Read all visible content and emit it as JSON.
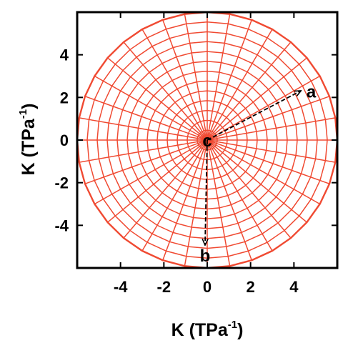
{
  "chart_data": {
    "type": "polar-mesh",
    "xlabel_main": "K (TPa",
    "xlabel_sup": "-1",
    "xlabel_close": ")",
    "ylabel_main": "K (TPa",
    "ylabel_sup": "-1",
    "ylabel_close": ")",
    "xlim": [
      -6,
      6
    ],
    "ylim": [
      -6,
      6
    ],
    "xticks": [
      -4,
      -2,
      0,
      2,
      4
    ],
    "yticks": [
      -4,
      -2,
      0,
      2,
      4
    ],
    "xtick_labels": [
      "-4",
      "-2",
      "0",
      "2",
      "4"
    ],
    "ytick_labels": [
      "-4",
      "-2",
      "0",
      "2",
      "4"
    ],
    "surface_radius": 6.0,
    "surface_center": [
      0,
      0
    ],
    "mesh_color": "#f04a32",
    "annotations": [
      {
        "label": "c",
        "x": 0.0,
        "y": 0.0
      },
      {
        "label": "a",
        "x": 4.8,
        "y": 2.3
      },
      {
        "label": "b",
        "x": -0.1,
        "y": -5.4
      }
    ],
    "vectors": [
      {
        "name": "a",
        "from": [
          0,
          0
        ],
        "to": [
          4.3,
          2.3
        ]
      },
      {
        "name": "b",
        "from": [
          0,
          0
        ],
        "to": [
          -0.1,
          -4.9
        ]
      }
    ]
  }
}
